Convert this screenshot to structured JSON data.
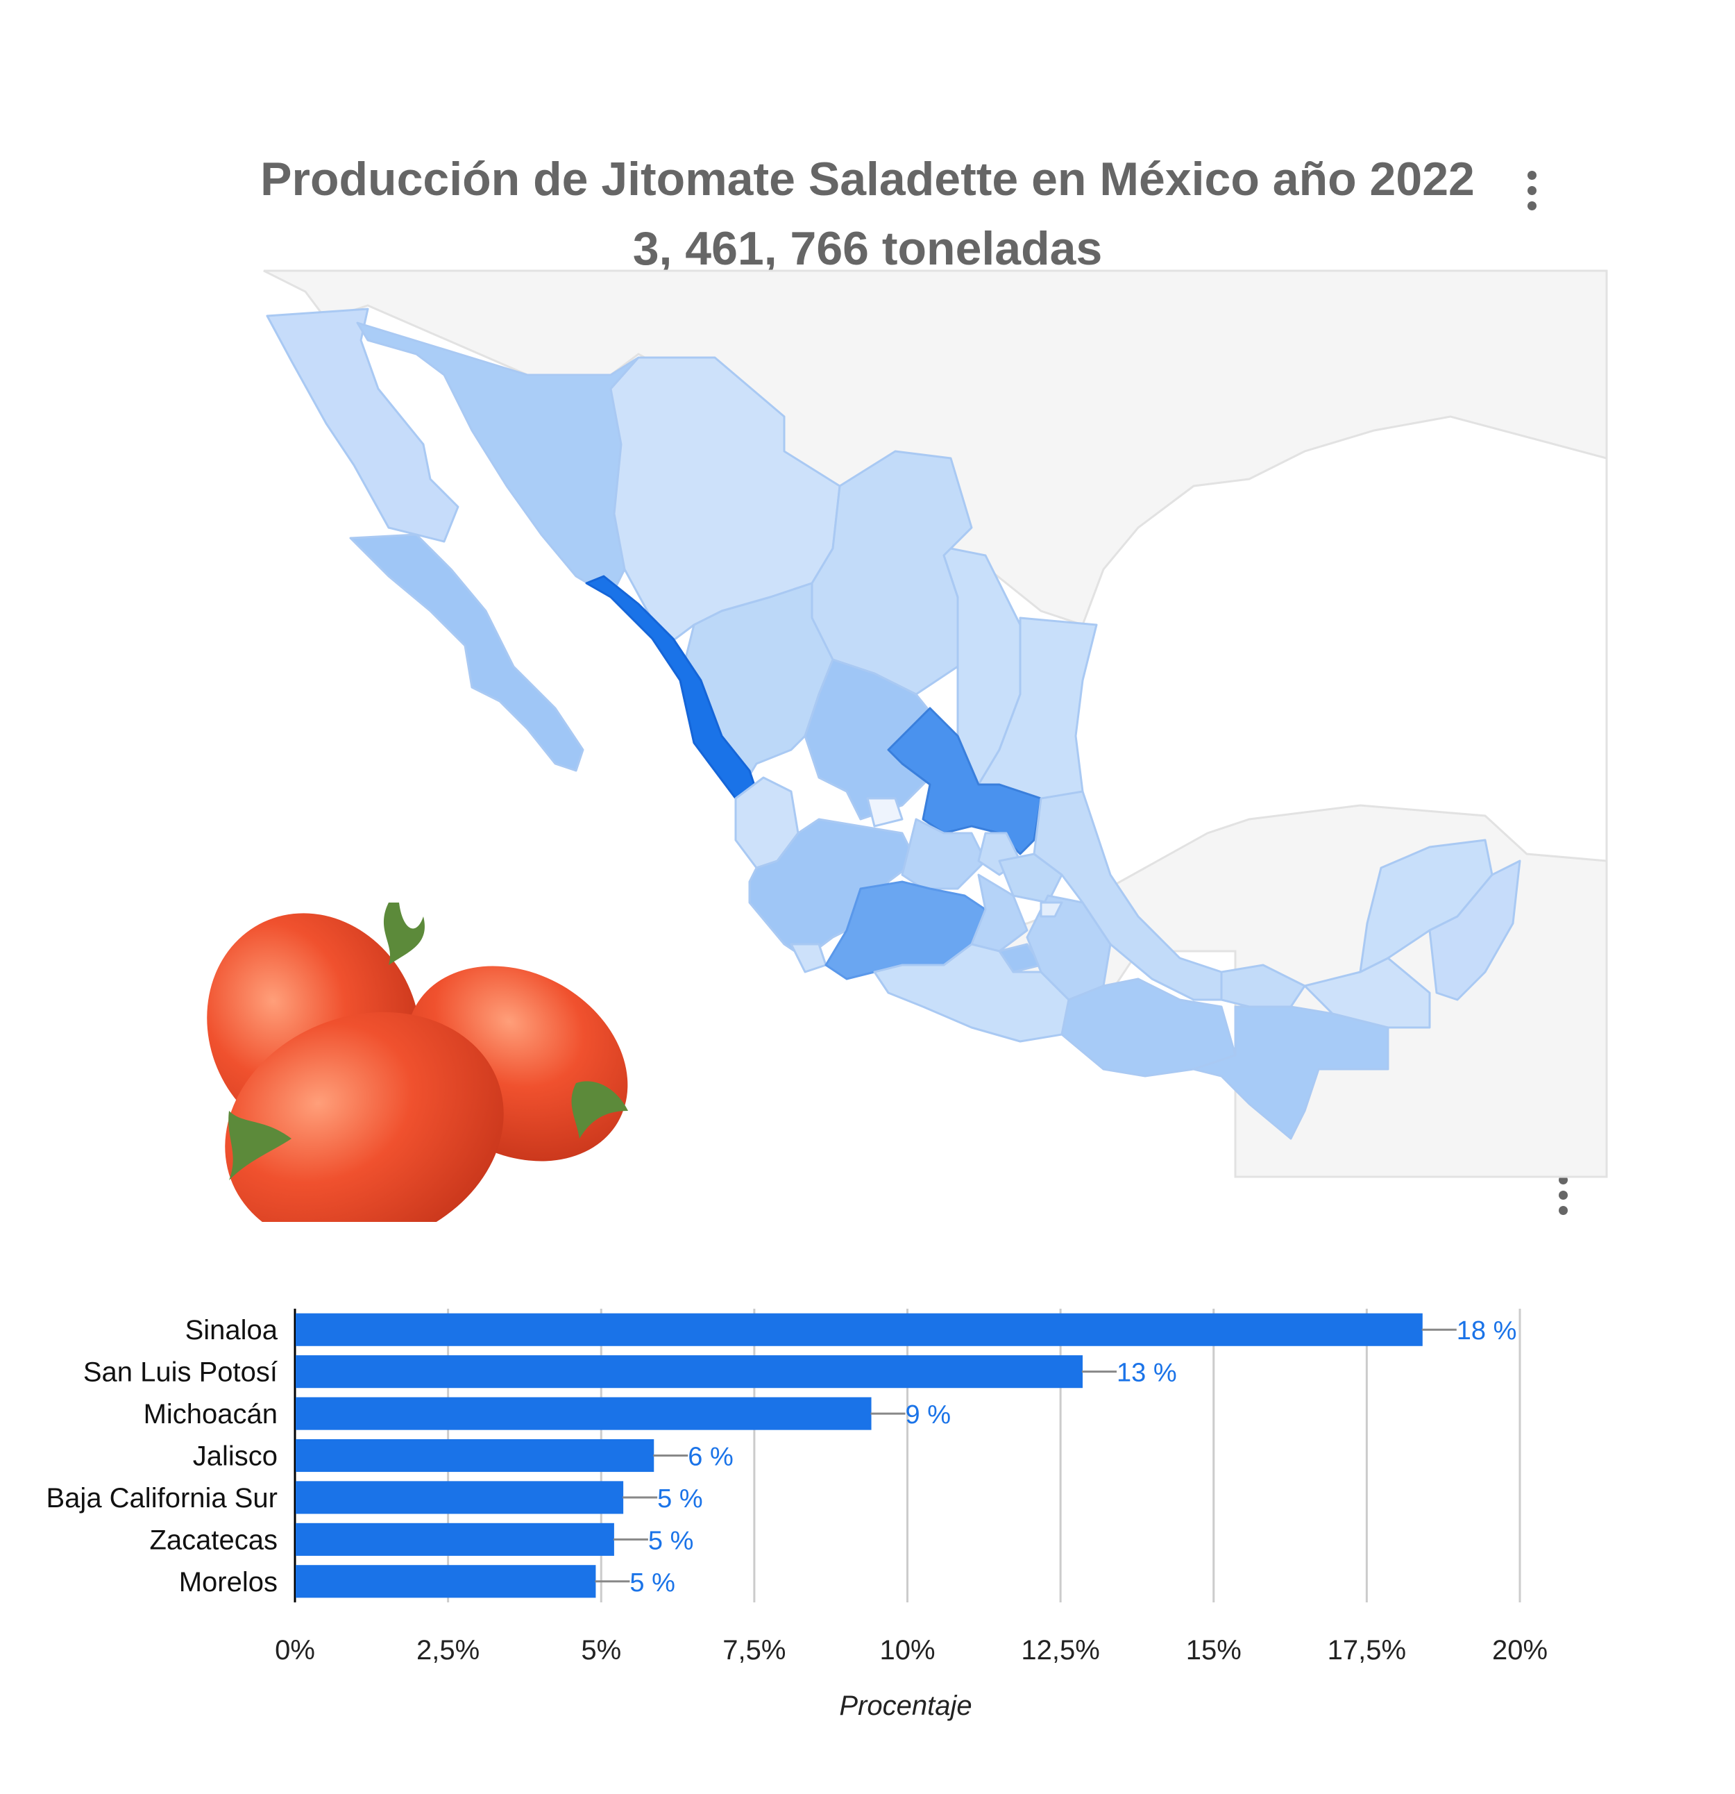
{
  "title_line1": "Producción de Jitomate Saladette en México año 2022",
  "title_line2": "3, 461, 766 toneladas",
  "icons": {
    "menu": "more-vert-icon",
    "tomato": "tomato-image"
  },
  "colors": {
    "bar": "#1a73e8",
    "label": "#1a73e8",
    "map_max": "#1a73e8",
    "map_low": "#c6dcfa",
    "land": "#f5f5f5"
  },
  "map": {
    "regions": [
      {
        "name": "Sinaloa",
        "value": 18
      },
      {
        "name": "San Luis Potosí",
        "value": 13
      },
      {
        "name": "Michoacán",
        "value": 9
      },
      {
        "name": "Jalisco",
        "value": 6
      },
      {
        "name": "Baja California Sur",
        "value": 5
      },
      {
        "name": "Zacatecas",
        "value": 5
      },
      {
        "name": "Morelos",
        "value": 5
      }
    ]
  },
  "chart_data": {
    "type": "bar",
    "orientation": "horizontal",
    "categories": [
      "Sinaloa",
      "San Luis Potosí",
      "Michoacán",
      "Jalisco",
      "Baja California Sur",
      "Zacatecas",
      "Morelos"
    ],
    "values": [
      18.4,
      12.85,
      9.4,
      5.85,
      5.35,
      5.2,
      4.9
    ],
    "data_labels": [
      "18 %",
      "13 %",
      "9 %",
      "6 %",
      "5 %",
      "5 %",
      "5 %"
    ],
    "xlabel": "Procentaje",
    "ylabel": "",
    "xlim": [
      0,
      20
    ],
    "xticks": [
      0,
      2.5,
      5,
      7.5,
      10,
      12.5,
      15,
      17.5,
      20
    ],
    "xtick_labels": [
      "0%",
      "2,5%",
      "5%",
      "7,5%",
      "10%",
      "12,5%",
      "15%",
      "17,5%",
      "20%"
    ],
    "grid": true
  }
}
